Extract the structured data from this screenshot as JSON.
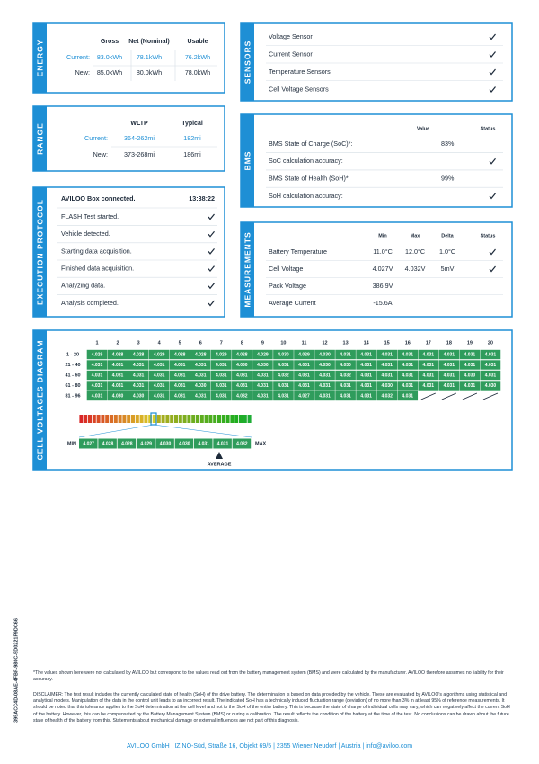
{
  "document_id": "395ACC4D-08AE-4FBF-980C-5D0221F9DC66",
  "energy": {
    "label": "ENERGY",
    "headers": [
      "Gross",
      "Net (Nominal)",
      "Usable"
    ],
    "rows": [
      {
        "label": "Current:",
        "values": [
          "83.0kWh",
          "78.1kWh",
          "76.2kWh"
        ]
      },
      {
        "label": "New:",
        "values": [
          "85.0kWh",
          "80.0kWh",
          "78.0kWh"
        ]
      }
    ]
  },
  "sensors": {
    "label": "SENSORS",
    "items": [
      "Voltage Sensor",
      "Current Sensor",
      "Temperature Sensors",
      "Cell Voltage Sensors"
    ]
  },
  "range": {
    "label": "RANGE",
    "headers": [
      "WLTP",
      "Typical"
    ],
    "rows": [
      {
        "label": "Current:",
        "values": [
          "364-262mi",
          "182mi"
        ]
      },
      {
        "label": "New:",
        "values": [
          "373-268mi",
          "186mi"
        ]
      }
    ]
  },
  "bms": {
    "label": "BMS",
    "headers": [
      "Value",
      "Status"
    ],
    "rows": [
      {
        "label": "BMS State of Charge (SoC)*:",
        "value": "83%"
      },
      {
        "label": "SoC calculation accuracy:",
        "check": true
      },
      {
        "label": "BMS State of Health (SoH)*:",
        "value": "99%"
      },
      {
        "label": "SoH calculation accuracy:",
        "check": true
      }
    ]
  },
  "execution": {
    "label": "EXECUTION PROTOCOL",
    "title": "AVILOO Box connected.",
    "time": "13:38:22",
    "steps": [
      "FLASH Test started.",
      "Vehicle detected.",
      "Starting data acquisition.",
      "Finished data acquisition.",
      "Analyzing data.",
      "Analysis completed."
    ]
  },
  "measurements": {
    "label": "MEASUREMENTS",
    "headers": [
      "Min",
      "Max",
      "Delta",
      "Status"
    ],
    "rows": [
      {
        "label": "Battery Temperature",
        "min": "11.0°C",
        "max": "12.0°C",
        "delta": "1.0°C",
        "check": true
      },
      {
        "label": "Cell Voltage",
        "min": "4.027V",
        "max": "4.032V",
        "delta": "5mV",
        "check": true
      },
      {
        "label": "Pack Voltage",
        "min": "386.9V"
      },
      {
        "label": "Average Current",
        "min": "-15.6A"
      }
    ]
  },
  "cells": {
    "label": "CELL VOLTAGES DIAGRAM",
    "columns": [
      1,
      2,
      3,
      4,
      5,
      6,
      7,
      8,
      9,
      10,
      11,
      12,
      13,
      14,
      15,
      16,
      17,
      18,
      19,
      20
    ],
    "rows": [
      {
        "label": "1 - 20",
        "values": [
          "4.029",
          "4.028",
          "4.028",
          "4.029",
          "4.028",
          "4.028",
          "4.029",
          "4.028",
          "4.029",
          "4.030",
          "4.029",
          "4.030",
          "4.031",
          "4.031",
          "4.031",
          "4.031",
          "4.031",
          "4.031",
          "4.031",
          "4.031"
        ]
      },
      {
        "label": "21 - 40",
        "values": [
          "4.031",
          "4.031",
          "4.031",
          "4.031",
          "4.031",
          "4.031",
          "4.031",
          "4.030",
          "4.030",
          "4.031",
          "4.031",
          "4.030",
          "4.030",
          "4.031",
          "4.031",
          "4.031",
          "4.031",
          "4.031",
          "4.031",
          "4.031"
        ]
      },
      {
        "label": "41 - 60",
        "values": [
          "4.031",
          "4.031",
          "4.031",
          "4.031",
          "4.031",
          "4.031",
          "4.031",
          "4.031",
          "4.031",
          "4.032",
          "4.031",
          "4.031",
          "4.032",
          "4.031",
          "4.031",
          "4.031",
          "4.031",
          "4.031",
          "4.030",
          "4.031"
        ]
      },
      {
        "label": "61 - 80",
        "values": [
          "4.031",
          "4.031",
          "4.031",
          "4.031",
          "4.031",
          "4.030",
          "4.031",
          "4.031",
          "4.031",
          "4.031",
          "4.031",
          "4.031",
          "4.031",
          "4.031",
          "4.030",
          "4.031",
          "4.031",
          "4.031",
          "4.031",
          "4.030"
        ]
      },
      {
        "label": "81 - 96",
        "values": [
          "4.031",
          "4.030",
          "4.030",
          "4.031",
          "4.031",
          "4.031",
          "4.031",
          "4.032",
          "4.031",
          "4.031",
          "4.027",
          "4.031",
          "4.031",
          "4.031",
          "4.032",
          "4.031"
        ]
      }
    ],
    "scale": {
      "min_label": "MIN",
      "max_label": "MAX",
      "average_label": "AVERAGE",
      "values": [
        "4.027",
        "4.028",
        "4.028",
        "4.029",
        "4.030",
        "4.030",
        "4.031",
        "4.031",
        "4.032"
      ]
    }
  },
  "footer": {
    "note": "*The values shown here were not calculated by AVILOO but correspond to the values read out from the battery management system (BMS) and were calculated by the manufacturer. AVILOO therefore assumes no liability for their accuracy.",
    "disclaimer": "DISCLAIMER: The test result includes the currently calculated state of health (SoH) of the drive battery. The determination is based on data provided by the vehicle. These are evaluated by AVILOO's algorithms using statistical and analytical models. Manipulation of the data in the control unit leads to an incorrect result. The indicated SoH has a technically induced fluctuation range (deviation) of no more than 3% in at least 95% of reference measurements. It should be noted that this tolerance applies to the SoH determination at the cell level and not to the SoH of the entire battery. This is because the state of charge of individual cells may vary, which can negatively affect the current SoH of the battery. However, this can be compensated by the Battery Management System (BMS) or during a calibration. The result reflects the condition of the battery at the time of the test. No conclusions can be drawn about the future state of health of the battery from this. Statements about mechanical damage or external influences are not part of this diagnosis.",
    "address": "AVILOO GmbH | IZ NÖ-Süd, Straße 16, Objekt 69/5 | 2355 Wiener Neudorf | Austria | info@aviloo.com"
  }
}
